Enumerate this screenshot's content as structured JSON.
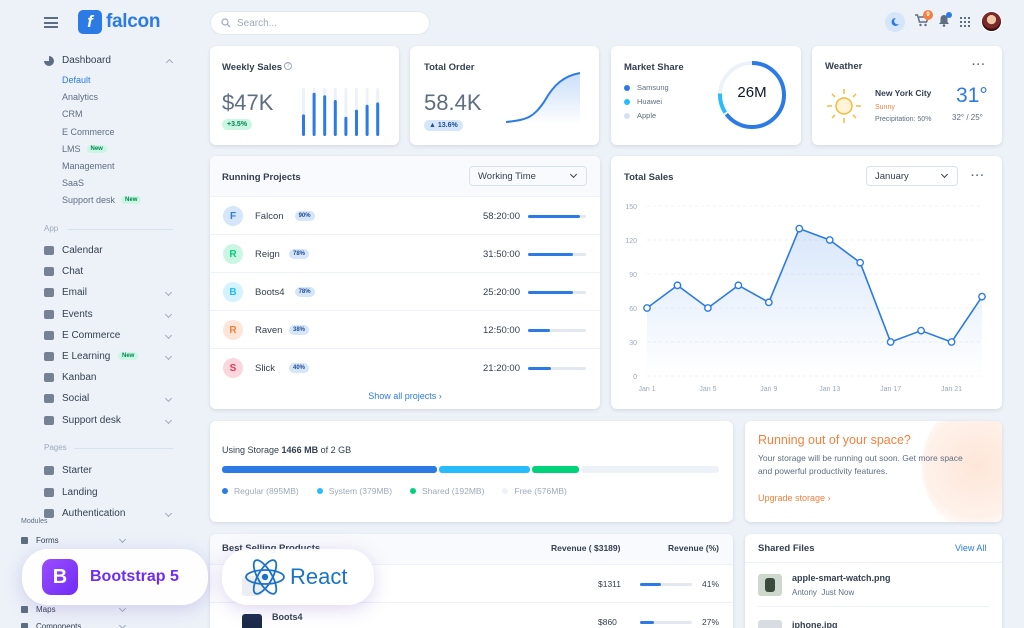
{
  "brand": {
    "name": "falcon",
    "mark": "f"
  },
  "sidebar": {
    "dashboard": {
      "label": "Dashboard",
      "items": [
        {
          "label": "Default",
          "active": true
        },
        {
          "label": "Analytics"
        },
        {
          "label": "CRM"
        },
        {
          "label": "E Commerce"
        },
        {
          "label": "LMS",
          "badge": "New"
        },
        {
          "label": "Management"
        },
        {
          "label": "SaaS"
        },
        {
          "label": "Support desk",
          "badge": "New"
        }
      ]
    },
    "app_head": "App",
    "app": [
      {
        "label": "Calendar",
        "icon": "calendar-icon"
      },
      {
        "label": "Chat",
        "icon": "chat-icon"
      },
      {
        "label": "Email",
        "icon": "envelope-icon"
      },
      {
        "label": "Events",
        "icon": "bookmark-icon"
      },
      {
        "label": "E Commerce",
        "icon": "cart-icon"
      },
      {
        "label": "E Learning",
        "icon": "graduation-cap-icon",
        "badge": "New"
      },
      {
        "label": "Kanban",
        "icon": "kanban-icon"
      },
      {
        "label": "Social",
        "icon": "share-icon"
      },
      {
        "label": "Support desk",
        "icon": "ticket-icon"
      }
    ],
    "pages_head": "Pages",
    "pages": [
      {
        "label": "Starter",
        "icon": "flag-icon"
      },
      {
        "label": "Landing",
        "icon": "globe-icon"
      },
      {
        "label": "Authentication",
        "icon": "lock-icon"
      }
    ],
    "modules_head": "Modules",
    "modules": [
      {
        "label": "Forms"
      },
      {
        "label": "Maps"
      },
      {
        "label": "Components"
      }
    ]
  },
  "topbar": {
    "search_placeholder": "Search...",
    "cart_count": "9"
  },
  "weekly_sales": {
    "title": "Weekly Sales",
    "value": "$47K",
    "change": "+3.5%",
    "bars": [
      0.45,
      0.9,
      0.85,
      0.75,
      0.4,
      0.55,
      0.65,
      0.7
    ]
  },
  "total_order": {
    "title": "Total Order",
    "value": "58.4K",
    "change": "▲ 13.6%"
  },
  "market_share": {
    "title": "Market Share",
    "value": "26M",
    "legend": [
      {
        "label": "Samsung",
        "color": "#2c7be5"
      },
      {
        "label": "Huawei",
        "color": "#27bcfd"
      },
      {
        "label": "Apple",
        "color": "#d8e2ef"
      }
    ]
  },
  "weather": {
    "title": "Weather",
    "city": "New York City",
    "condition": "Sunny",
    "precipitation": "Precipitation: 50%",
    "temp": "31°",
    "range": "32° / 25°"
  },
  "projects": {
    "title": "Running Projects",
    "select": "Working Time",
    "footer": "Show all projects ›",
    "rows": [
      {
        "letter": "F",
        "name": "Falcon",
        "pct": "90%",
        "time": "58:20:00",
        "progress": 0.9,
        "bg": "#d5e5fa",
        "fg": "#2c7be5"
      },
      {
        "letter": "R",
        "name": "Reign",
        "pct": "78%",
        "time": "31:50:00",
        "progress": 0.78,
        "bg": "#ccf6e4",
        "fg": "#00d27a"
      },
      {
        "letter": "B",
        "name": "Boots4",
        "pct": "78%",
        "time": "25:20:00",
        "progress": 0.78,
        "bg": "#d4f2ff",
        "fg": "#27bcfd"
      },
      {
        "letter": "R",
        "name": "Raven",
        "pct": "38%",
        "time": "12:50:00",
        "progress": 0.38,
        "bg": "#fde6d8",
        "fg": "#f5803e"
      },
      {
        "letter": "S",
        "name": "Slick",
        "pct": "40%",
        "time": "21:20:00",
        "progress": 0.4,
        "bg": "#fad7dd",
        "fg": "#e63757"
      }
    ]
  },
  "total_sales": {
    "title": "Total Sales",
    "select": "January"
  },
  "chart_data": {
    "type": "line",
    "title": "Total Sales",
    "x": [
      "Jan 1",
      "Jan 3",
      "Jan 5",
      "Jan 7",
      "Jan 9",
      "Jan 11",
      "Jan 13",
      "Jan 15",
      "Jan 17",
      "Jan 19",
      "Jan 21",
      "Jan 23"
    ],
    "x_tick_labels": [
      "Jan 1",
      "Jan 5",
      "Jan 9",
      "Jan 13",
      "Jan 17",
      "Jan 21"
    ],
    "values": [
      60,
      80,
      60,
      80,
      65,
      130,
      120,
      100,
      30,
      40,
      30,
      70
    ],
    "y_ticks": [
      "150",
      "120",
      "90",
      "60",
      "30",
      "0"
    ],
    "ylim": [
      0,
      150
    ],
    "grid": true
  },
  "storage": {
    "prefix": "Using Storage ",
    "used": "1466 MB",
    "suffix": " of 2 GB",
    "segments": [
      {
        "label": "Regular (895MB)",
        "mb": 895,
        "color": "#2c7be5"
      },
      {
        "label": "System (379MB)",
        "mb": 379,
        "color": "#27bcfd"
      },
      {
        "label": "Shared (192MB)",
        "mb": 192,
        "color": "#00d27a"
      },
      {
        "label": "Free (576MB)",
        "mb": 576,
        "color": "#edf2f9"
      }
    ]
  },
  "space": {
    "title": "Running out of your space?",
    "text": "Your storage will be running out soon. Get more space and powerful productivity features.",
    "link": "Upgrade storage ›"
  },
  "best_selling": {
    "title": "Best Selling Products",
    "col1": "Revenue ( $3189)",
    "col2": "Revenue (%)",
    "rows": [
      {
        "name": "",
        "revenue": "$1311",
        "pct": "41%",
        "progress": 0.41
      },
      {
        "name": "Boots4",
        "revenue": "$860",
        "pct": "27%",
        "progress": 0.27
      }
    ]
  },
  "shared_files": {
    "title": "Shared Files",
    "view_all": "View All",
    "files": [
      {
        "name": "apple-smart-watch.png",
        "meta": "Antony  Just Now"
      },
      {
        "name": "iphone.jpg",
        "meta": ""
      }
    ]
  },
  "overlays": {
    "bootstrap": "Bootstrap 5",
    "bootstrap_mark": "B",
    "react": "React"
  }
}
